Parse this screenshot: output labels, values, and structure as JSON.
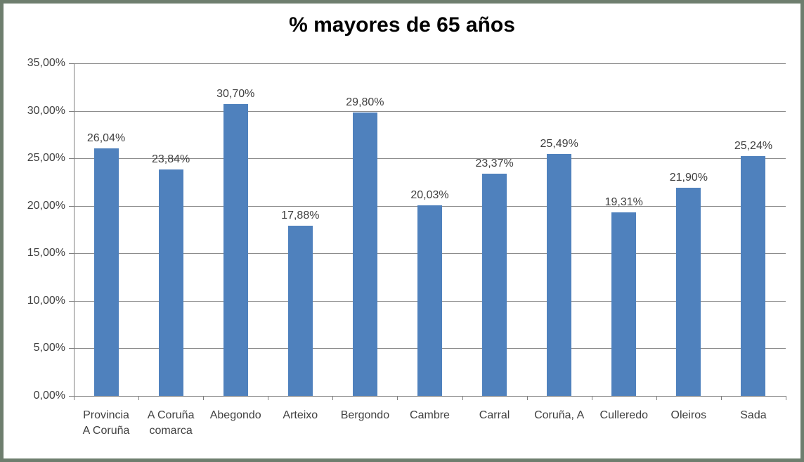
{
  "chart_data": {
    "type": "bar",
    "title": "% mayores de 65 años",
    "categories": [
      "Provincia A Coruña",
      "A Coruña comarca",
      "Abegondo",
      "Arteixo",
      "Bergondo",
      "Cambre",
      "Carral",
      "Coruña, A",
      "Culleredo",
      "Oleiros",
      "Sada"
    ],
    "category_lines": [
      [
        "Provincia",
        "A Coruña"
      ],
      [
        "A Coruña",
        "comarca"
      ],
      [
        "Abegondo"
      ],
      [
        "Arteixo"
      ],
      [
        "Bergondo"
      ],
      [
        "Cambre"
      ],
      [
        "Carral"
      ],
      [
        "Coruña, A"
      ],
      [
        "Culleredo"
      ],
      [
        "Oleiros"
      ],
      [
        "Sada"
      ]
    ],
    "values": [
      26.04,
      23.84,
      30.7,
      17.88,
      29.8,
      20.03,
      23.37,
      25.49,
      19.31,
      21.9,
      25.24
    ],
    "data_labels": [
      "26,04%",
      "23,84%",
      "30,70%",
      "17,88%",
      "29,80%",
      "20,03%",
      "23,37%",
      "25,49%",
      "19,31%",
      "21,90%",
      "25,24%"
    ],
    "ylim": [
      0,
      35
    ],
    "ytick_step": 5,
    "ytick_labels": [
      "0,00%",
      "5,00%",
      "10,00%",
      "15,00%",
      "20,00%",
      "25,00%",
      "30,00%",
      "35,00%"
    ],
    "xlabel": "",
    "ylabel": "",
    "grid": true,
    "legend_position": "none",
    "colors": {
      "bar": "#4f81bd",
      "gridline": "#8c8c8c",
      "axis": "#7f7f7f",
      "text": "#404040",
      "title": "#000000",
      "frame_border": "#6e7e6e",
      "background": "#ffffff"
    }
  }
}
